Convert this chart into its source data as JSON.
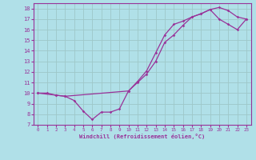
{
  "xlabel": "Windchill (Refroidissement éolien,°C)",
  "xlim": [
    -0.5,
    23.5
  ],
  "ylim": [
    7,
    18.5
  ],
  "yticks": [
    7,
    8,
    9,
    10,
    11,
    12,
    13,
    14,
    15,
    16,
    17,
    18
  ],
  "xticks": [
    0,
    1,
    2,
    3,
    4,
    5,
    6,
    7,
    8,
    9,
    10,
    11,
    12,
    13,
    14,
    15,
    16,
    17,
    18,
    19,
    20,
    21,
    22,
    23
  ],
  "bg_color": "#b0e0e8",
  "line_color": "#993399",
  "grid_color": "#9ec8c8",
  "line1_x": [
    0,
    1,
    2,
    3,
    4,
    5,
    6,
    7,
    8,
    9,
    10,
    11,
    12,
    13,
    14,
    15,
    16,
    17,
    18,
    19,
    20,
    21,
    22,
    23
  ],
  "line1_y": [
    10,
    10,
    9.8,
    9.7,
    9.3,
    8.3,
    7.5,
    8.2,
    8.2,
    8.5,
    10.2,
    11.1,
    12.1,
    13.8,
    15.5,
    16.5,
    16.8,
    17.2,
    17.5,
    17.9,
    18.1,
    17.8,
    17.2,
    17.0
  ],
  "line2_x": [
    0,
    2,
    3,
    10,
    11,
    12,
    13,
    14,
    15,
    16,
    17,
    18,
    19,
    20,
    21,
    22,
    23
  ],
  "line2_y": [
    10,
    9.8,
    9.7,
    10.2,
    11.0,
    11.8,
    13.0,
    14.8,
    15.5,
    16.4,
    17.2,
    17.5,
    17.9,
    17.0,
    16.5,
    16.0,
    17.0
  ]
}
